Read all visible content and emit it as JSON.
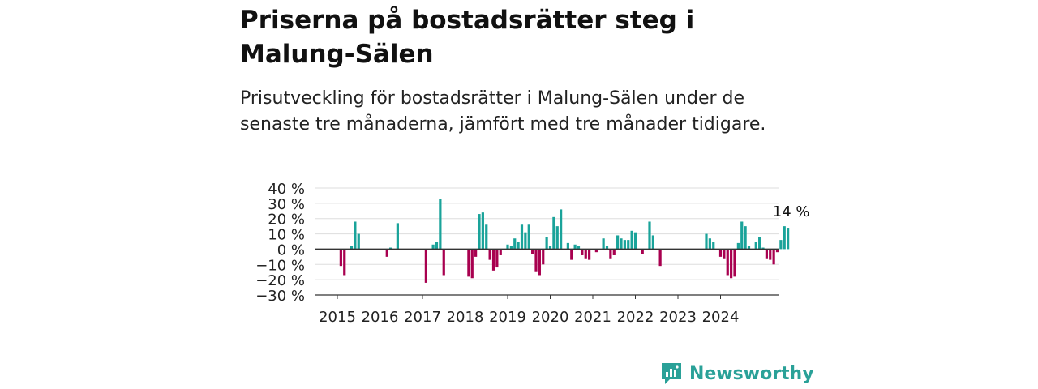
{
  "title": "Priserna på bostadsrätter steg i Malung-Sälen",
  "subtitle": "Prisutveckling för bostadsrätter i Malung-Sälen under de senaste tre månaderna, jämfört med tre månader tidigare.",
  "brand": "Newsworthy",
  "colors": {
    "positive": "#1aa39a",
    "negative": "#a8004f",
    "axis": "#333333",
    "grid": "#dddddd",
    "brand": "#2aa198"
  },
  "chart_data": {
    "type": "bar",
    "ylim": [
      -30,
      40
    ],
    "y_ticks": [
      {
        "value": 40,
        "label": "40 %"
      },
      {
        "value": 30,
        "label": "30 %"
      },
      {
        "value": 20,
        "label": "20 %"
      },
      {
        "value": 10,
        "label": "10 %"
      },
      {
        "value": 0,
        "label": "0 %"
      },
      {
        "value": -10,
        "label": "−10 %"
      },
      {
        "value": -20,
        "label": "−20 %"
      },
      {
        "value": -30,
        "label": "−30 %"
      }
    ],
    "x_ticks": [
      "2015",
      "2016",
      "2017",
      "2018",
      "2019",
      "2020",
      "2021",
      "2022",
      "2023",
      "2024"
    ],
    "start_year": 2015,
    "grid": true,
    "last_value_label": "14 %",
    "values": [
      null,
      -11,
      -17,
      null,
      2,
      18,
      10,
      null,
      null,
      null,
      null,
      null,
      null,
      null,
      -5,
      1,
      null,
      17,
      null,
      null,
      null,
      null,
      null,
      null,
      null,
      -22,
      null,
      3,
      5,
      33,
      -17,
      null,
      null,
      null,
      null,
      null,
      null,
      -18,
      -19,
      -5,
      23,
      24,
      16,
      -7,
      -14,
      -12,
      -4,
      null,
      3,
      2,
      7,
      5,
      16,
      11,
      16,
      -3,
      -15,
      -17,
      -10,
      8,
      2,
      21,
      15,
      26,
      null,
      4,
      -7,
      3,
      2,
      -4,
      -6,
      -7,
      null,
      -2,
      null,
      7,
      2,
      -6,
      -4,
      9,
      7,
      6,
      6,
      12,
      11,
      null,
      -3,
      null,
      18,
      9,
      null,
      -11,
      null,
      null,
      null,
      null,
      null,
      null,
      null,
      null,
      null,
      null,
      null,
      null,
      10,
      7,
      5,
      null,
      -5,
      -6,
      -17,
      -19,
      -18,
      4,
      18,
      15,
      2,
      null,
      5,
      8,
      1,
      -6,
      -7,
      -10,
      -2,
      6,
      15,
      14
    ]
  }
}
